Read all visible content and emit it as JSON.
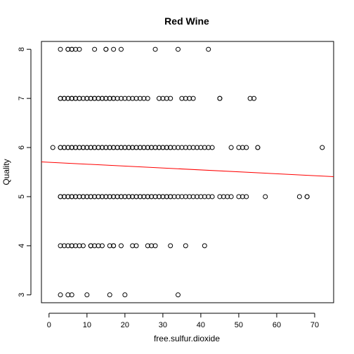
{
  "chart_data": {
    "type": "scatter",
    "title": "Red Wine",
    "xlabel": "free.sulfur.dioxide",
    "ylabel": "Quality",
    "xlim": [
      -2,
      75
    ],
    "ylim": [
      2.84,
      8.16
    ],
    "x_ticks": [
      0,
      10,
      20,
      30,
      40,
      50,
      60,
      70
    ],
    "x_tick_labels": [
      "0",
      "10",
      "20",
      "30",
      "40",
      "50",
      "60",
      "70"
    ],
    "y_ticks": [
      3,
      4,
      5,
      6,
      7,
      8
    ],
    "y_tick_labels": [
      "3",
      "4",
      "5",
      "6",
      "7",
      "8"
    ],
    "grid": false,
    "marker": "open-circle",
    "colors": {
      "points": "#000000",
      "fit_line": "#ff0000"
    },
    "fit_line": {
      "intercept": 5.7,
      "slope": -0.0039
    },
    "series": [
      {
        "y": 8,
        "x": [
          3,
          5,
          5,
          6,
          6,
          7,
          8,
          12,
          15,
          15,
          17,
          19,
          28,
          34,
          42
        ]
      },
      {
        "y": 7,
        "x": [
          3,
          3,
          4,
          4,
          5,
          5,
          6,
          6,
          6,
          7,
          7,
          8,
          8,
          9,
          10,
          10,
          11,
          11,
          12,
          12,
          13,
          13,
          14,
          14,
          15,
          15,
          16,
          16,
          17,
          17,
          18,
          19,
          20,
          21,
          22,
          23,
          24,
          25,
          26,
          29,
          30,
          31,
          32,
          35,
          36,
          37,
          38,
          45,
          45,
          53,
          54
        ]
      },
      {
        "y": 6,
        "x": [
          1,
          3,
          3,
          4,
          4,
          5,
          5,
          6,
          6,
          6,
          7,
          7,
          8,
          8,
          9,
          9,
          10,
          10,
          11,
          11,
          12,
          12,
          13,
          13,
          14,
          14,
          15,
          15,
          16,
          16,
          17,
          17,
          18,
          18,
          19,
          19,
          20,
          20,
          21,
          21,
          22,
          22,
          23,
          23,
          24,
          24,
          25,
          25,
          26,
          26,
          27,
          27,
          28,
          28,
          29,
          29,
          30,
          30,
          31,
          31,
          32,
          32,
          33,
          34,
          35,
          36,
          37,
          38,
          39,
          40,
          41,
          42,
          43,
          48,
          50,
          51,
          52,
          55,
          55,
          72
        ]
      },
      {
        "y": 5,
        "x": [
          3,
          3,
          4,
          4,
          5,
          5,
          6,
          6,
          6,
          7,
          7,
          8,
          8,
          9,
          9,
          10,
          10,
          11,
          11,
          12,
          12,
          13,
          13,
          14,
          14,
          15,
          15,
          16,
          16,
          17,
          17,
          18,
          18,
          19,
          19,
          20,
          20,
          21,
          21,
          22,
          22,
          23,
          23,
          24,
          24,
          25,
          25,
          26,
          26,
          27,
          27,
          28,
          28,
          29,
          29,
          30,
          30,
          31,
          31,
          32,
          32,
          33,
          34,
          35,
          36,
          37,
          38,
          39,
          40,
          41,
          42,
          43,
          45,
          46,
          47,
          48,
          50,
          51,
          52,
          57,
          66,
          68,
          68
        ]
      },
      {
        "y": 4,
        "x": [
          3,
          4,
          5,
          6,
          6,
          7,
          8,
          9,
          11,
          11,
          12,
          13,
          14,
          16,
          17,
          17,
          19,
          22,
          23,
          26,
          27,
          28,
          32,
          36,
          41
        ]
      },
      {
        "y": 3,
        "x": [
          3,
          5,
          6,
          10,
          16,
          20,
          34
        ]
      }
    ]
  }
}
